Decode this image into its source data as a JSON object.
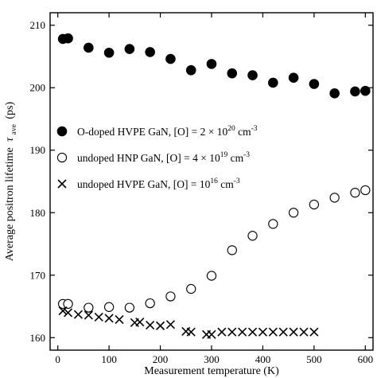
{
  "chart_data": {
    "type": "scatter",
    "title": "",
    "xlabel": "Measurement temperature (K)",
    "ylabel": {
      "main": "Average positron lifetime",
      "symbol": "τ",
      "subscript": "ave",
      "unit": "(ps)"
    },
    "xlim": [
      -15,
      615
    ],
    "ylim": [
      158,
      212
    ],
    "xticks": [
      0,
      100,
      200,
      300,
      400,
      500,
      600
    ],
    "yticks": [
      160,
      170,
      180,
      190,
      200,
      210
    ],
    "legend_placement": "middle-left",
    "grid": false,
    "series": [
      {
        "legend": {
          "text": "O-doped HVPE GaN, [O] = 2 × 10",
          "sup": "20",
          "unit": " cm",
          "unit_sup": "-3"
        },
        "marker": "filled-circle",
        "x": [
          10,
          20,
          60,
          100,
          140,
          180,
          220,
          260,
          300,
          340,
          380,
          420,
          460,
          500,
          540,
          580,
          600
        ],
        "y": [
          207.8,
          207.9,
          206.4,
          205.6,
          206.2,
          205.7,
          204.6,
          202.8,
          203.8,
          202.3,
          202.0,
          200.8,
          201.6,
          200.6,
          199.1,
          199.4,
          199.5
        ]
      },
      {
        "legend": {
          "text": "undoped HNP GaN, [O] = 4 × 10",
          "sup": "19",
          "unit": " cm",
          "unit_sup": "-3"
        },
        "marker": "open-circle",
        "x": [
          10,
          20,
          60,
          100,
          140,
          180,
          220,
          260,
          300,
          340,
          380,
          420,
          460,
          500,
          540,
          580,
          600
        ],
        "y": [
          165.4,
          165.4,
          164.8,
          164.9,
          164.8,
          165.5,
          166.6,
          167.8,
          169.9,
          174.0,
          176.3,
          178.2,
          180.0,
          181.3,
          182.4,
          183.2,
          183.6
        ]
      },
      {
        "legend": {
          "text": "undoped HVPE GaN, [O] = 10",
          "sup": "16",
          "unit": " cm",
          "unit_sup": "-3"
        },
        "marker": "cross",
        "x": [
          10,
          20,
          40,
          60,
          80,
          100,
          120,
          150,
          160,
          180,
          200,
          220,
          250,
          260,
          290,
          300,
          320,
          340,
          360,
          380,
          400,
          420,
          440,
          460,
          480,
          500
        ],
        "y": [
          164.3,
          164.0,
          163.7,
          163.6,
          163.3,
          163.1,
          162.9,
          162.4,
          162.5,
          162.0,
          161.9,
          162.1,
          161.0,
          160.9,
          160.5,
          160.5,
          160.9,
          160.9,
          160.9,
          160.9,
          160.9,
          160.9,
          160.9,
          160.9,
          160.9,
          160.9
        ]
      }
    ]
  }
}
